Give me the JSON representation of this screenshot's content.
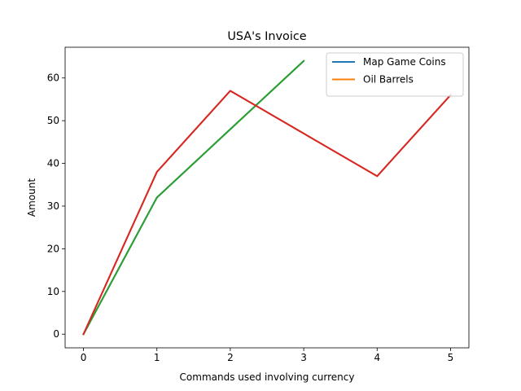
{
  "chart_data": {
    "type": "line",
    "title": "USA's Invoice",
    "xlabel": "Commands used involving currency",
    "ylabel": "Amount",
    "xlim": [
      -0.25,
      5.25
    ],
    "ylim": [
      -3.2,
      67.2
    ],
    "xticks": [
      0,
      1,
      2,
      3,
      4,
      5
    ],
    "yticks": [
      0,
      10,
      20,
      30,
      40,
      50,
      60
    ],
    "grid": false,
    "legend_position": "top-right",
    "series": [
      {
        "name": "Map Game Coins",
        "color": "#1f77b4",
        "in_legend": true,
        "x": [
          0,
          1,
          2,
          3
        ],
        "y": [
          0,
          32,
          48,
          64
        ]
      },
      {
        "name": "Oil Barrels",
        "color": "#ff7f0e",
        "in_legend": true,
        "x": [
          0,
          1,
          2,
          3,
          4,
          5
        ],
        "y": [
          0,
          38,
          57,
          47,
          37,
          56
        ]
      },
      {
        "name": "",
        "color": "#2ca02c",
        "in_legend": false,
        "x": [
          0,
          1,
          2,
          3
        ],
        "y": [
          0,
          32,
          48,
          64
        ]
      },
      {
        "name": "",
        "color": "#d62728",
        "in_legend": false,
        "x": [
          0,
          1,
          2,
          3,
          4,
          5
        ],
        "y": [
          0,
          38,
          57,
          47,
          37,
          56
        ]
      }
    ]
  }
}
